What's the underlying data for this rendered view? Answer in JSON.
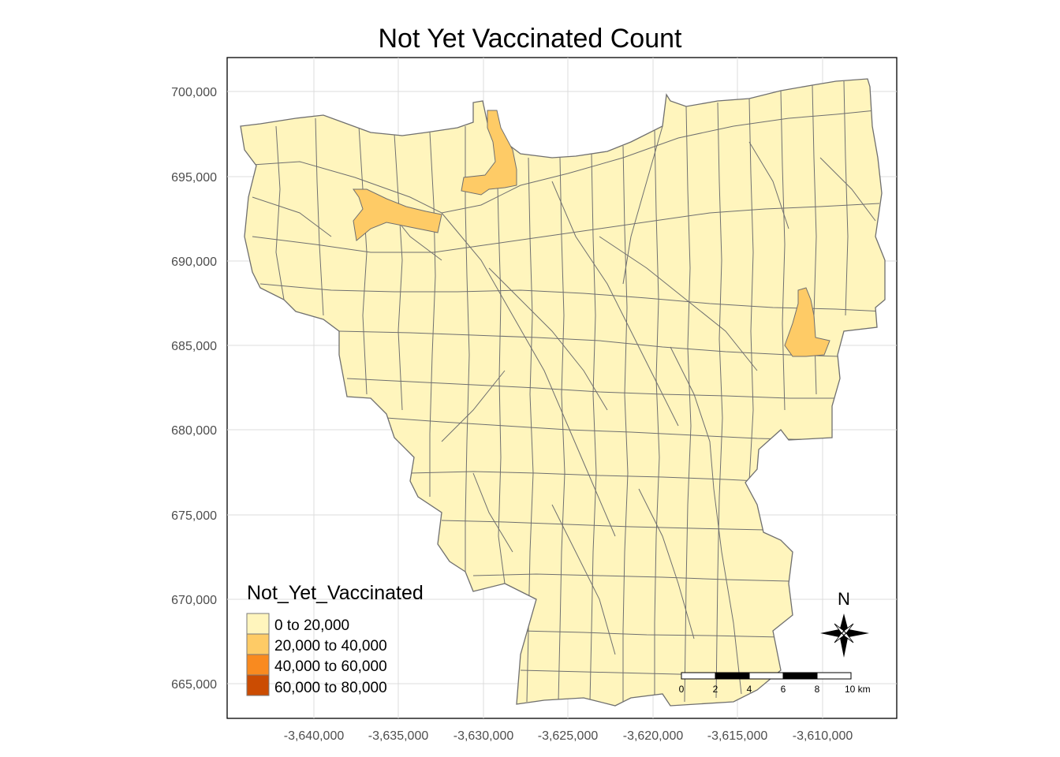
{
  "title": "Not Yet Vaccinated Count",
  "axes": {
    "x_ticks": [
      "-3,640,000",
      "-3,635,000",
      "-3,630,000",
      "-3,625,000",
      "-3,620,000",
      "-3,615,000",
      "-3,610,000"
    ],
    "y_ticks": [
      "700,000",
      "695,000",
      "690,000",
      "685,000",
      "680,000",
      "675,000",
      "670,000",
      "665,000"
    ],
    "xlim": [
      -3647000,
      -3607500
    ],
    "ylim": [
      663000,
      702000
    ],
    "grid": true
  },
  "legend": {
    "title": "Not_Yet_Vaccinated",
    "placement": "bottom-left",
    "items": [
      {
        "label": "0 to 20,000",
        "color": "#fff5bd"
      },
      {
        "label": "20,000 to 40,000",
        "color": "#fecb66"
      },
      {
        "label": "40,000 to 60,000",
        "color": "#f98a1f"
      },
      {
        "label": "60,000 to 80,000",
        "color": "#cb4c02"
      }
    ]
  },
  "north_arrow": {
    "label": "N"
  },
  "scale_bar": {
    "labels": [
      "0",
      "2",
      "4",
      "6",
      "8",
      "10 km"
    ]
  },
  "colors": {
    "base_fill": "#fff5bd",
    "mid_fill": "#fecb66",
    "border": "#6f6f6f",
    "grid": "#dcdcdc"
  }
}
